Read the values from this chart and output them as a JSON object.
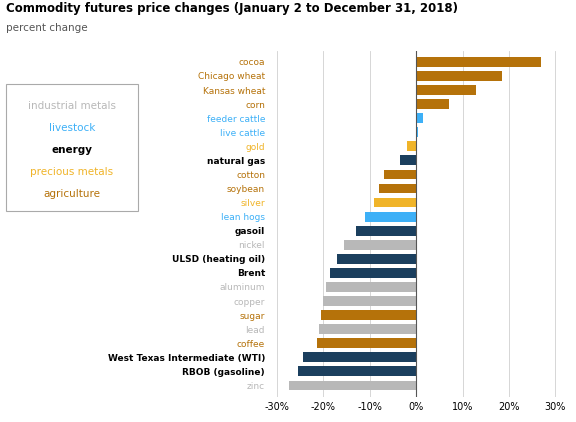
{
  "title": "Commodity futures price changes (January 2 to December 31, 2018)",
  "subtitle": "percent change",
  "commodities": [
    {
      "name": "cocoa",
      "value": 27.0,
      "category": "agriculture",
      "bold": false
    },
    {
      "name": "Chicago wheat",
      "value": 18.5,
      "category": "agriculture",
      "bold": false
    },
    {
      "name": "Kansas wheat",
      "value": 13.0,
      "category": "agriculture",
      "bold": false
    },
    {
      "name": "corn",
      "value": 7.0,
      "category": "agriculture",
      "bold": false
    },
    {
      "name": "feeder cattle",
      "value": 1.5,
      "category": "livestock",
      "bold": false
    },
    {
      "name": "live cattle",
      "value": 0.5,
      "category": "livestock",
      "bold": false
    },
    {
      "name": "gold",
      "value": -2.0,
      "category": "precious metals",
      "bold": false
    },
    {
      "name": "natural gas",
      "value": -3.5,
      "category": "energy",
      "bold": true
    },
    {
      "name": "cotton",
      "value": -7.0,
      "category": "agriculture",
      "bold": false
    },
    {
      "name": "soybean",
      "value": -8.0,
      "category": "agriculture",
      "bold": false
    },
    {
      "name": "silver",
      "value": -9.0,
      "category": "precious metals",
      "bold": false
    },
    {
      "name": "lean hogs",
      "value": -11.0,
      "category": "livestock",
      "bold": false
    },
    {
      "name": "gasoil",
      "value": -13.0,
      "category": "energy",
      "bold": true
    },
    {
      "name": "nickel",
      "value": -15.5,
      "category": "industrial metals",
      "bold": false
    },
    {
      "name": "ULSD (heating oil)",
      "value": -17.0,
      "category": "energy",
      "bold": true
    },
    {
      "name": "Brent",
      "value": -18.5,
      "category": "energy",
      "bold": true
    },
    {
      "name": "aluminum",
      "value": -19.5,
      "category": "industrial metals",
      "bold": false
    },
    {
      "name": "copper",
      "value": -20.0,
      "category": "industrial metals",
      "bold": false
    },
    {
      "name": "sugar",
      "value": -20.5,
      "category": "agriculture",
      "bold": false
    },
    {
      "name": "lead",
      "value": -21.0,
      "category": "industrial metals",
      "bold": false
    },
    {
      "name": "coffee",
      "value": -21.5,
      "category": "agriculture",
      "bold": false
    },
    {
      "name": "West Texas Intermediate (WTI)",
      "value": -24.5,
      "category": "energy",
      "bold": true
    },
    {
      "name": "RBOB (gasoline)",
      "value": -25.5,
      "category": "energy",
      "bold": true
    },
    {
      "name": "zinc",
      "value": -27.5,
      "category": "industrial metals",
      "bold": false
    }
  ],
  "category_colors": {
    "agriculture": "#b5720a",
    "livestock": "#3db0f7",
    "energy": "#1b3f5e",
    "precious metals": "#f0b429",
    "industrial metals": "#b8b8b8"
  },
  "category_text_colors": {
    "agriculture": "#b5720a",
    "livestock": "#3db0f7",
    "energy": "#000000",
    "precious metals": "#f0b429",
    "industrial metals": "#b8b8b8"
  },
  "legend_categories": [
    "industrial metals",
    "livestock",
    "energy",
    "precious metals",
    "agriculture"
  ],
  "legend_text_colors": [
    "#b8b8b8",
    "#3db0f7",
    "#000000",
    "#f0b429",
    "#b5720a"
  ],
  "xlim": [
    -32,
    32
  ],
  "xticks": [
    -30,
    -20,
    -10,
    0,
    10,
    20,
    30
  ],
  "background_color": "#ffffff",
  "bar_height": 0.7
}
